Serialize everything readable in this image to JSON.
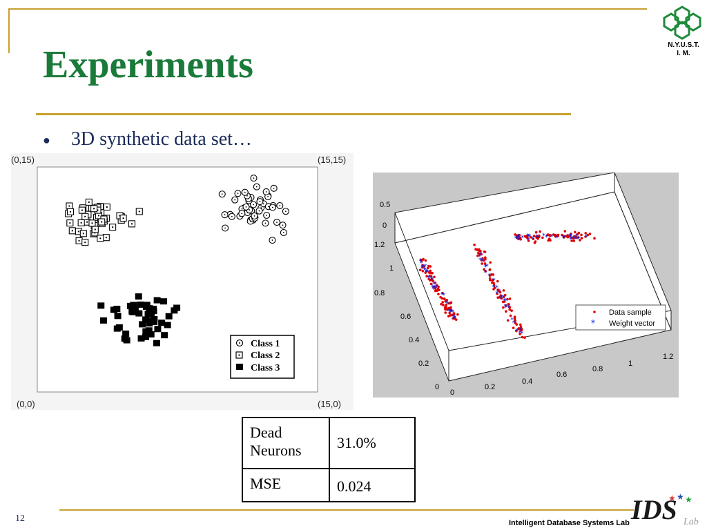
{
  "slide": {
    "title": "Experiments",
    "bullet": "3D synthetic data set…",
    "page_number": "12",
    "lab_name": "Intelligent Database Systems Lab",
    "logo_text_line1": "N.Y.U.S.T.",
    "logo_text_line2": "I. M.",
    "ids_logo_text": "IDS",
    "ids_logo_suffix": "Lab"
  },
  "colors": {
    "title": "#1a7a3a",
    "gold_rule": "#c8a030",
    "logo_green": "#1e8a3a",
    "data_sample": "#e00000",
    "weight_vector": "#1020e0"
  },
  "left_plot": {
    "corner_tl": "(0,15)",
    "corner_tr": "(15,15)",
    "corner_bl": "(0,0)",
    "corner_br": "(15,0)",
    "legend": [
      "Class 1",
      "Class 2",
      "Class 3"
    ]
  },
  "right_plot": {
    "z_ticks": [
      "0.5",
      "0"
    ],
    "y_ticks": [
      "1.2",
      "1",
      "0.8",
      "0.6",
      "0.4",
      "0.2",
      "0"
    ],
    "x_ticks": [
      "0",
      "0.2",
      "0.4",
      "0.6",
      "0.8",
      "1",
      "1.2"
    ],
    "legend": [
      "Data sample",
      "Weight vector"
    ]
  },
  "table": {
    "rows": [
      {
        "label": "Dead Neurons",
        "value": "31.0%"
      },
      {
        "label": "MSE",
        "value": "0.024"
      }
    ]
  }
}
